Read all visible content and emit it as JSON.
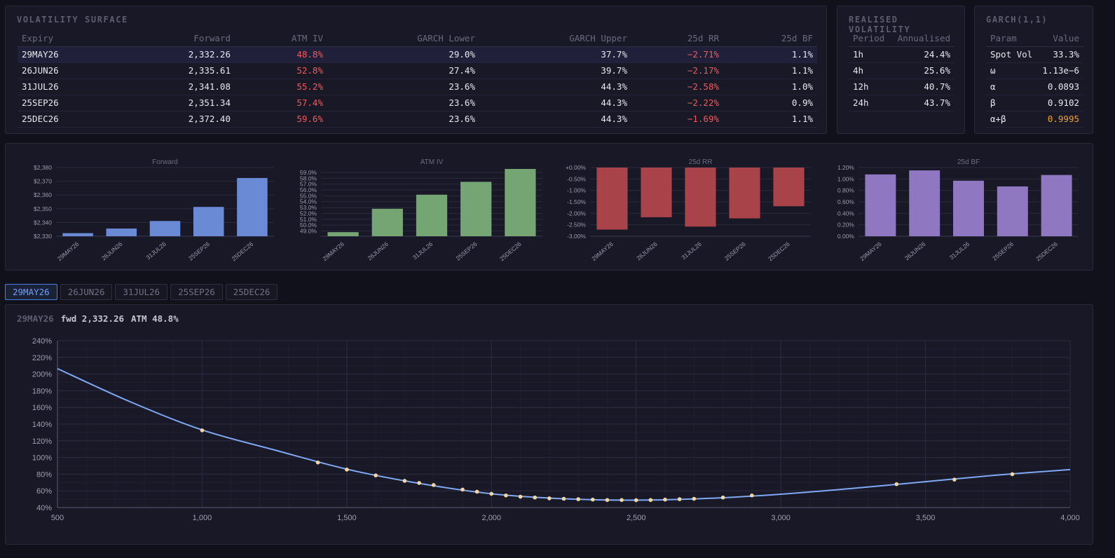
{
  "vol_surface": {
    "title": "VOLATILITY SURFACE",
    "columns": [
      "Expiry",
      "Forward",
      "ATM IV",
      "GARCH Lower",
      "GARCH Upper",
      "25d RR",
      "25d BF"
    ],
    "rows": [
      [
        "29MAY26",
        "2,332.26",
        "48.8%",
        "29.0%",
        "37.7%",
        "−2.71%",
        "1.1%"
      ],
      [
        "26JUN26",
        "2,335.61",
        "52.8%",
        "27.4%",
        "39.7%",
        "−2.17%",
        "1.1%"
      ],
      [
        "31JUL26",
        "2,341.08",
        "55.2%",
        "23.6%",
        "44.3%",
        "−2.58%",
        "1.0%"
      ],
      [
        "25SEP26",
        "2,351.34",
        "57.4%",
        "23.6%",
        "44.3%",
        "−2.22%",
        "0.9%"
      ],
      [
        "25DEC26",
        "2,372.40",
        "59.6%",
        "23.6%",
        "44.3%",
        "−1.69%",
        "1.1%"
      ]
    ],
    "selected_row": 0
  },
  "realised": {
    "title": "REALISED VOLATILITY",
    "columns": [
      "Period",
      "Annualised"
    ],
    "rows": [
      [
        "1h",
        "24.4%"
      ],
      [
        "4h",
        "25.6%"
      ],
      [
        "12h",
        "40.7%"
      ],
      [
        "24h",
        "43.7%"
      ]
    ]
  },
  "garch": {
    "title": "GARCH(1,1)",
    "columns": [
      "Param",
      "Value"
    ],
    "rows": [
      [
        "Spot Vol",
        "33.3%"
      ],
      [
        "ω",
        "1.13e−6"
      ],
      [
        "α",
        "0.0893"
      ],
      [
        "β",
        "0.9102"
      ],
      [
        "α+β",
        "0.9995"
      ]
    ]
  },
  "tabs": [
    "29MAY26",
    "26JUN26",
    "31JUL26",
    "25SEP26",
    "25DEC26"
  ],
  "active_tab": 0,
  "smile_header": {
    "expiry": "29MAY26",
    "fwd": "fwd 2,332.26",
    "atm": "ATM 48.8%"
  },
  "colors": {
    "forward": "#6a8ad6",
    "atm": "#75a573",
    "rr": "#a8434a",
    "bf": "#9077c2",
    "smile_line": "#7fa8f5",
    "smile_points": "#f2d8a0"
  },
  "chart_data": [
    {
      "type": "bar",
      "title": "Forward",
      "categories": [
        "29MAY26",
        "26JUN26",
        "31JUL26",
        "25SEP26",
        "25DEC26"
      ],
      "values": [
        2332.26,
        2335.61,
        2341.08,
        2351.34,
        2372.4
      ],
      "ylim": [
        2330,
        2380
      ],
      "yticks": [
        2330,
        2340,
        2350,
        2360,
        2370,
        2380
      ],
      "ytick_labels": [
        "$2,330",
        "$2,340",
        "$2,350",
        "$2,360",
        "$2,370",
        "$2,380"
      ]
    },
    {
      "type": "bar",
      "title": "ATM IV",
      "categories": [
        "29MAY26",
        "26JUN26",
        "31JUL26",
        "25SEP26",
        "25DEC26"
      ],
      "values": [
        48.8,
        52.8,
        55.2,
        57.4,
        59.6
      ],
      "ylim": [
        48.1,
        59.6
      ],
      "yticks": [
        49,
        50,
        51,
        52,
        53,
        54,
        55,
        56,
        57,
        58,
        59
      ],
      "ytick_labels": [
        "49.0%",
        "50.0%",
        "51.0%",
        "52.0%",
        "53.0%",
        "54.0%",
        "55.0%",
        "56.0%",
        "57.0%",
        "58.0%",
        "59.0%"
      ]
    },
    {
      "type": "bar",
      "title": "25d RR",
      "categories": [
        "29MAY26",
        "26JUN26",
        "31JUL26",
        "25SEP26",
        "25DEC26"
      ],
      "values": [
        -2.71,
        -2.17,
        -2.58,
        -2.22,
        -1.69
      ],
      "ylim": [
        -3.0,
        0
      ],
      "yticks": [
        0,
        -0.5,
        -1.0,
        -1.5,
        -2.0,
        -2.5,
        -3.0
      ],
      "ytick_labels": [
        "+0.00%",
        "-0.50%",
        "-1.00%",
        "-1.50%",
        "-2.00%",
        "-2.50%",
        "-3.00%"
      ]
    },
    {
      "type": "bar",
      "title": "25d BF",
      "categories": [
        "29MAY26",
        "26JUN26",
        "31JUL26",
        "25SEP26",
        "25DEC26"
      ],
      "values": [
        1.08,
        1.15,
        0.97,
        0.87,
        1.07
      ],
      "ylim": [
        0,
        1.2
      ],
      "yticks": [
        0,
        0.2,
        0.4,
        0.6,
        0.8,
        1.0,
        1.2
      ],
      "ytick_labels": [
        "0.00%",
        "0.20%",
        "0.40%",
        "0.60%",
        "0.80%",
        "1.00%",
        "1.20%"
      ]
    },
    {
      "type": "line",
      "title": "",
      "xlim": [
        500,
        4000
      ],
      "ylim": [
        40,
        240
      ],
      "xticks": [
        500,
        1000,
        1500,
        2000,
        2500,
        3000,
        3500,
        4000
      ],
      "xtick_labels": [
        "500",
        "1,000",
        "1,500",
        "2,000",
        "2,500",
        "3,000",
        "3,500",
        "4,000"
      ],
      "yticks": [
        40,
        60,
        80,
        100,
        120,
        140,
        160,
        180,
        200,
        220,
        240
      ],
      "ytick_labels": [
        "40%",
        "60%",
        "80%",
        "100%",
        "120%",
        "140%",
        "160%",
        "180%",
        "200%",
        "220%",
        "240%"
      ],
      "curve": [
        [
          500,
          206.5
        ],
        [
          750,
          167
        ],
        [
          1000,
          133
        ],
        [
          1250,
          109
        ],
        [
          1500,
          86
        ],
        [
          1750,
          69
        ],
        [
          2000,
          56.5
        ],
        [
          2250,
          50.5
        ],
        [
          2500,
          48.8
        ],
        [
          2750,
          51
        ],
        [
          3000,
          56
        ],
        [
          3250,
          63
        ],
        [
          3500,
          71
        ],
        [
          3750,
          79
        ],
        [
          4000,
          85.5
        ]
      ],
      "points": [
        [
          1000,
          132.5
        ],
        [
          1400,
          94
        ],
        [
          1500,
          85.5
        ],
        [
          1600,
          78.5
        ],
        [
          1700,
          72
        ],
        [
          1750,
          69.5
        ],
        [
          1800,
          67
        ],
        [
          1900,
          61.5
        ],
        [
          1950,
          59
        ],
        [
          2000,
          56.5
        ],
        [
          2050,
          54.5
        ],
        [
          2100,
          53
        ],
        [
          2150,
          52
        ],
        [
          2200,
          51
        ],
        [
          2250,
          50.5
        ],
        [
          2300,
          50
        ],
        [
          2350,
          49.5
        ],
        [
          2400,
          49
        ],
        [
          2450,
          49
        ],
        [
          2500,
          48.8
        ],
        [
          2550,
          49
        ],
        [
          2600,
          49.5
        ],
        [
          2650,
          50
        ],
        [
          2700,
          50.5
        ],
        [
          2800,
          52
        ],
        [
          2900,
          54.5
        ],
        [
          3400,
          68
        ],
        [
          3600,
          73.5
        ],
        [
          3800,
          80
        ]
      ]
    }
  ]
}
